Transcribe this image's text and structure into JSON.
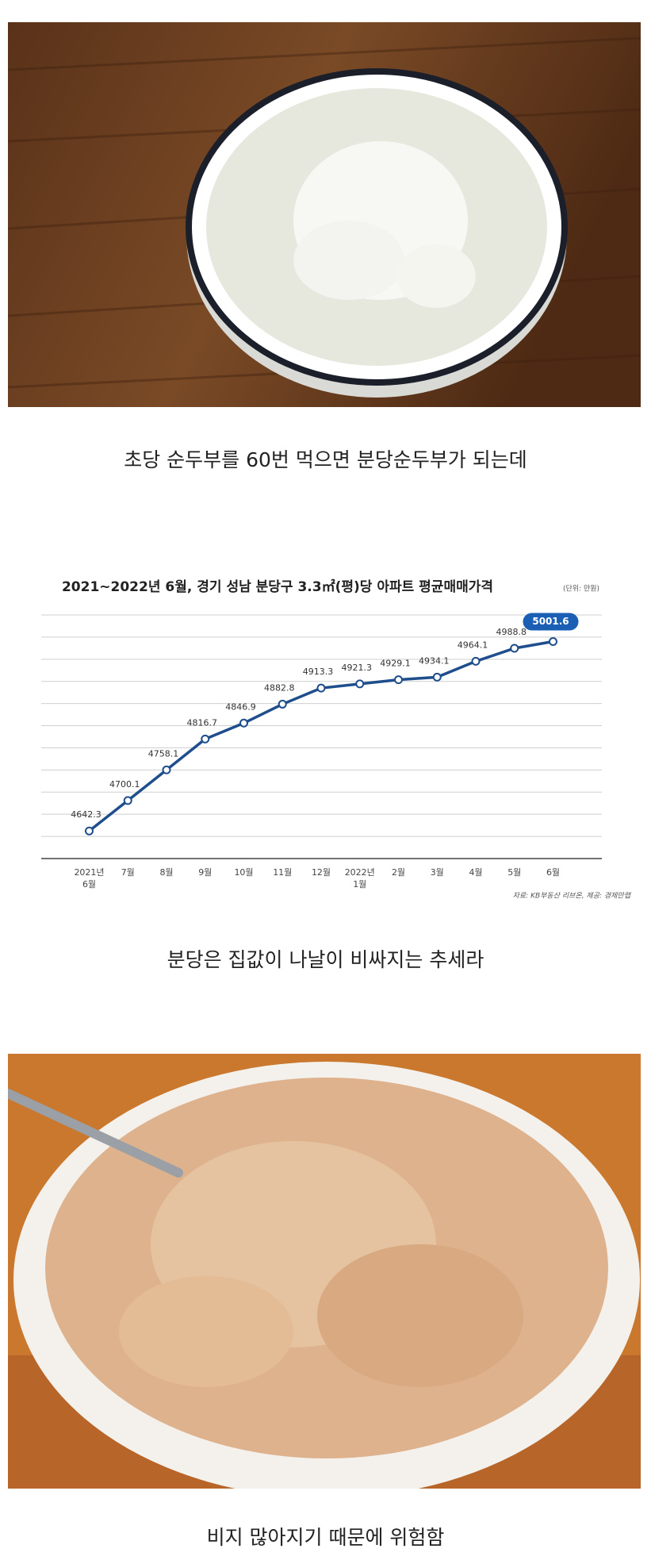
{
  "captions": [
    "초당 순두부를 60번 먹으면 분당순두부가 되는데",
    "분당은 집값이 나날이 비싸지는 추세라",
    "비지 많아지기 때문에 위험함"
  ],
  "chart_data": {
    "type": "line",
    "title": "2021~2022년 6월, 경기 성남 분당구 3.3㎡(평)당 아파트 평균매매가격",
    "unit": "(단위: 만원)",
    "source": "자료: KB부동산 리브온, 제공: 경제만랩",
    "categories": [
      "2021년\n6월",
      "7월",
      "8월",
      "9월",
      "10월",
      "11월",
      "12월",
      "2022년\n1월",
      "2월",
      "3월",
      "4월",
      "5월",
      "6월"
    ],
    "values": [
      4642.3,
      4700.1,
      4758.1,
      4816.7,
      4846.9,
      4882.8,
      4913.3,
      4921.3,
      4929.1,
      4934.1,
      4964.1,
      4988.8,
      5001.6
    ],
    "color": "#1f4e8c",
    "highlight_color": "#1a5fb4",
    "ylim": [
      4590,
      5052
    ],
    "grid": true
  }
}
